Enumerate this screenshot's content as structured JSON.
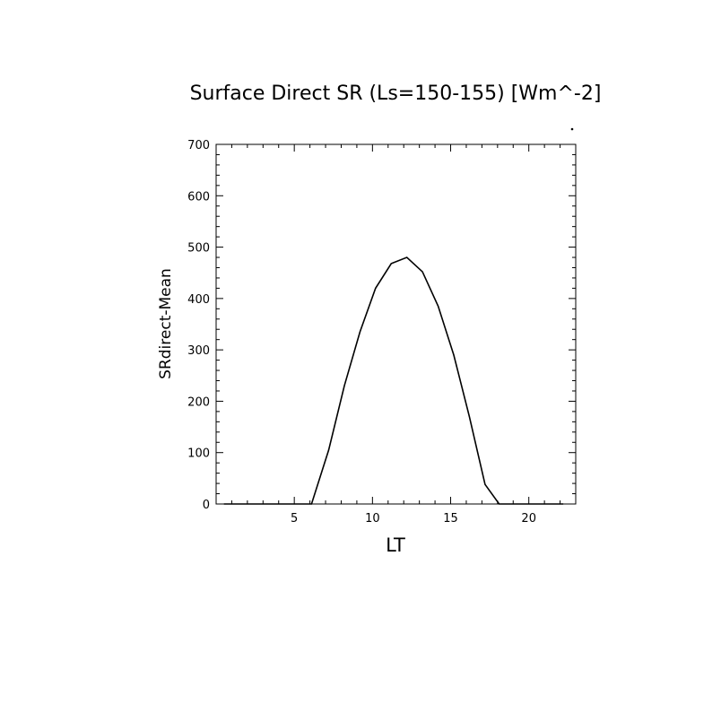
{
  "chart_data": {
    "type": "line",
    "title": "Surface Direct SR (Ls=150-155) [Wm^-2]",
    "xlabel": "LT",
    "ylabel": "SRdirect-Mean",
    "xlim": [
      0,
      23
    ],
    "ylim": [
      0,
      700
    ],
    "xticks": [
      5,
      10,
      15,
      20
    ],
    "yticks": [
      0,
      100,
      200,
      300,
      400,
      500,
      600,
      700
    ],
    "grid": false,
    "series": [
      {
        "x": [
          0.5,
          1.5,
          2.5,
          3.5,
          4.5,
          5.5,
          6.1,
          7.2,
          8.2,
          9.2,
          10.2,
          11.2,
          12.2,
          13.2,
          14.2,
          15.2,
          16.2,
          17.2,
          18.1,
          19.2,
          20.2,
          21.2,
          22.2
        ],
        "y": [
          0,
          0,
          0,
          0,
          0,
          0,
          0,
          105,
          230,
          335,
          420,
          468,
          480,
          452,
          385,
          290,
          170,
          38,
          0,
          0,
          0,
          0,
          0
        ]
      }
    ],
    "color": "#000000"
  }
}
